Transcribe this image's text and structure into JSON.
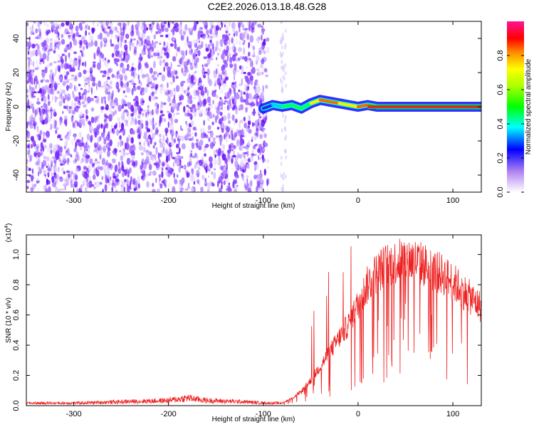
{
  "title": "C2E2.2026.013.18.48.G28",
  "chart_data": [
    {
      "type": "heatmap",
      "title": "C2E2.2026.013.18.48.G28",
      "xlabel": "Height of straight line (km)",
      "ylabel": "Frequency (Hz)",
      "xlim": [
        -350,
        130
      ],
      "ylim": [
        -50,
        50
      ],
      "xticks": [
        -300,
        -200,
        -100,
        0,
        100
      ],
      "xtick_labels": [
        "-300",
        "-200",
        "-100",
        "0",
        "100"
      ],
      "yticks": [
        -40,
        -20,
        0,
        20,
        40
      ],
      "ytick_labels": [
        "-40",
        "-20",
        "0",
        "20",
        "40"
      ],
      "noise_region_km": [
        -350,
        -95
      ],
      "signal_track": {
        "x": [
          -100,
          -90,
          -80,
          -70,
          -60,
          -50,
          -40,
          -30,
          -20,
          -10,
          0,
          10,
          20,
          40,
          60,
          80,
          100,
          130
        ],
        "freq": [
          -1,
          1,
          0,
          1,
          -1,
          2,
          4,
          3,
          2,
          1,
          0,
          1,
          0,
          0,
          0,
          0,
          0,
          0
        ],
        "amplitude": [
          0.3,
          0.4,
          0.55,
          0.5,
          0.55,
          0.7,
          0.85,
          0.9,
          0.7,
          0.75,
          0.8,
          0.85,
          0.9,
          0.95,
          0.97,
          0.98,
          0.98,
          0.98
        ]
      },
      "colorbar": {
        "label": "Normalized spectral amplitude",
        "range": [
          0,
          1
        ],
        "ticks": [
          0,
          0.2,
          0.4,
          0.6,
          0.8
        ],
        "tick_labels": [
          "0.0",
          "0.2",
          "0.4",
          "0.6",
          "0.8"
        ],
        "colors": [
          "#ffffff",
          "#8a2be2",
          "#0000ff",
          "#00ffff",
          "#00ff00",
          "#ffff00",
          "#ff8800",
          "#ff0000",
          "#ff1493"
        ]
      }
    },
    {
      "type": "line",
      "xlabel": "Height of straight line (km)",
      "ylabel": "SNR (10 * v/v)",
      "y_multiplier": "(x10",
      "y_multiplier_exp": "4",
      "y_multiplier_close": ")",
      "xlim": [
        -350,
        130
      ],
      "ylim": [
        0,
        1.13
      ],
      "xticks": [
        -300,
        -200,
        -100,
        0,
        100
      ],
      "xtick_labels": [
        "-300",
        "-200",
        "-100",
        "0",
        "100"
      ],
      "yticks": [
        0,
        0.2,
        0.4,
        0.6,
        0.8,
        1.0
      ],
      "ytick_labels": [
        "0.0",
        "0.2",
        "0.4",
        "0.6",
        "0.8",
        "1.0"
      ],
      "color": "#ee2222",
      "envelope": {
        "x": [
          -350,
          -300,
          -250,
          -200,
          -180,
          -160,
          -120,
          -100,
          -80,
          -70,
          -60,
          -50,
          -40,
          -30,
          -20,
          -10,
          0,
          10,
          20,
          30,
          40,
          50,
          60,
          70,
          80,
          90,
          100,
          110,
          120,
          130
        ],
        "y": [
          0.02,
          0.02,
          0.03,
          0.04,
          0.06,
          0.04,
          0.03,
          0.02,
          0.02,
          0.05,
          0.1,
          0.18,
          0.28,
          0.38,
          0.48,
          0.58,
          0.72,
          0.86,
          0.95,
          1.0,
          1.02,
          1.04,
          1.03,
          1.0,
          0.96,
          0.93,
          0.88,
          0.82,
          0.76,
          0.7
        ]
      }
    }
  ]
}
